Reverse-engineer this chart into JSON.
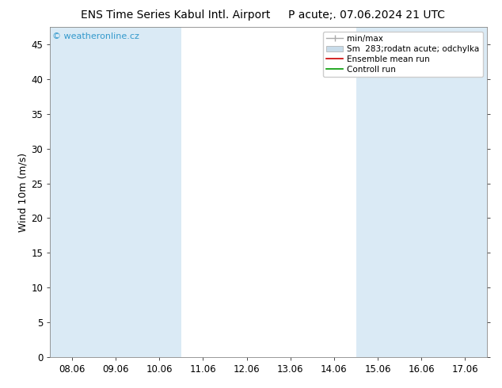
{
  "title_left": "ENS Time Series Kabul Intl. Airport",
  "title_right": "P acute;. 07.06.2024 21 UTC",
  "ylabel": "Wind 10m (m/s)",
  "watermark": "© weatheronline.cz",
  "ylim": [
    0,
    47.5
  ],
  "yticks": [
    0,
    5,
    10,
    15,
    20,
    25,
    30,
    35,
    40,
    45
  ],
  "xtick_labels": [
    "08.06",
    "09.06",
    "10.06",
    "11.06",
    "12.06",
    "13.06",
    "14.06",
    "15.06",
    "16.06",
    "17.06"
  ],
  "n_xticks": 10,
  "shaded_bands": [
    0,
    1,
    2,
    7,
    8,
    9
  ],
  "band_color": "#daeaf5",
  "background_color": "#ffffff",
  "plot_bg_color": "#ffffff",
  "legend_minmax_color": "#aaaaaa",
  "legend_spread_color": "#c8dcea",
  "legend_mean_color": "#cc0000",
  "legend_control_color": "#009900",
  "title_fontsize": 10,
  "axis_fontsize": 9,
  "tick_fontsize": 8.5,
  "watermark_color": "#3399cc",
  "legend_label_minmax": "min/max",
  "legend_label_spread": "Sm  283;rodatn acute; odchylka",
  "legend_label_mean": "Ensemble mean run",
  "legend_label_control": "Controll run"
}
